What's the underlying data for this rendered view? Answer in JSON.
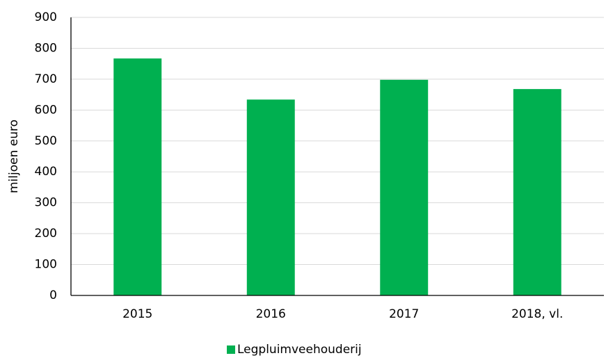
{
  "chart_data": {
    "type": "bar",
    "categories": [
      "2015",
      "2016",
      "2017",
      "2018, vl."
    ],
    "series": [
      {
        "name": "Legpluimveehouderij",
        "color": "#00b050",
        "values": [
          767,
          634,
          698,
          668
        ]
      }
    ],
    "ylabel": "miljoen euro",
    "ylim": [
      0,
      900
    ],
    "yticks": [
      0,
      100,
      200,
      300,
      400,
      500,
      600,
      700,
      800,
      900
    ],
    "grid": true,
    "legend": "bottom"
  }
}
